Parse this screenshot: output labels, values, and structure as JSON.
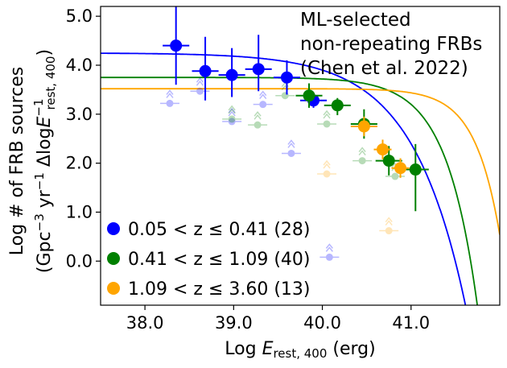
{
  "chart_data": {
    "type": "scatter",
    "xlabel": "Log E_rest,400 (erg)",
    "ylabel_line1": "Log # of FRB sources",
    "ylabel_line2": "(Gpc⁻³ yr⁻¹ ΔlogE⁻¹rest,400)",
    "xlim": [
      37.5,
      42.0
    ],
    "ylim": [
      -0.9,
      5.2
    ],
    "xticks": [
      38.0,
      39.0,
      40.0,
      41.0
    ],
    "xtick_labels": [
      "38.0",
      "39.0",
      "40.0",
      "41.0"
    ],
    "yticks": [
      0.0,
      1.0,
      2.0,
      3.0,
      4.0,
      5.0
    ],
    "ytick_labels": [
      "0.0",
      "1.0",
      "2.0",
      "3.0",
      "4.0",
      "5.0"
    ],
    "annotation": [
      "ML-selected",
      "non-repeating FRBs",
      "(Chen et al. 2022)"
    ],
    "legend_position": "bottom-left",
    "series": [
      {
        "name": "0.05 < z ≤ 0.41 (28)",
        "color": "#0000ff",
        "points": [
          {
            "x": 38.35,
            "y": 4.4,
            "xerr": 0.15,
            "yerr_lo": 0.8,
            "yerr_hi": 0.8
          },
          {
            "x": 38.68,
            "y": 3.88,
            "xerr": 0.15,
            "yerr_lo": 0.6,
            "yerr_hi": 0.7
          },
          {
            "x": 38.98,
            "y": 3.8,
            "xerr": 0.15,
            "yerr_lo": 0.45,
            "yerr_hi": 0.55
          },
          {
            "x": 39.28,
            "y": 3.92,
            "xerr": 0.15,
            "yerr_lo": 0.45,
            "yerr_hi": 0.7
          },
          {
            "x": 39.6,
            "y": 3.75,
            "xerr": 0.15,
            "yerr_lo": 0.35,
            "yerr_hi": 0.35
          },
          {
            "x": 39.9,
            "y": 3.28,
            "xerr": 0.15,
            "yerr_lo": 0.15,
            "yerr_hi": 0.15
          }
        ],
        "faint_limits": [
          {
            "x": 38.28,
            "y": 3.22
          },
          {
            "x": 38.62,
            "y": 3.47
          },
          {
            "x": 38.98,
            "y": 2.85
          },
          {
            "x": 39.33,
            "y": 3.2
          },
          {
            "x": 39.65,
            "y": 2.2
          },
          {
            "x": 40.08,
            "y": 0.08
          }
        ],
        "fit": {
          "a": 4.25,
          "e0": 40.0,
          "b": 0.35,
          "c": 0.6
        }
      },
      {
        "name": "0.41 < z ≤ 1.09 (40)",
        "color": "#008000",
        "points": [
          {
            "x": 39.85,
            "y": 3.38,
            "xerr": 0.15,
            "yerr_lo": 0.25,
            "yerr_hi": 0.25
          },
          {
            "x": 40.17,
            "y": 3.18,
            "xerr": 0.15,
            "yerr_lo": 0.2,
            "yerr_hi": 0.15
          },
          {
            "x": 40.47,
            "y": 2.8,
            "xerr": 0.15,
            "yerr_lo": 0.3,
            "yerr_hi": 0.3
          },
          {
            "x": 40.75,
            "y": 2.05,
            "xerr": 0.15,
            "yerr_lo": 0.3,
            "yerr_hi": 0.3
          },
          {
            "x": 41.05,
            "y": 1.87,
            "xerr": 0.15,
            "yerr_lo": 0.85,
            "yerr_hi": 0.52
          }
        ],
        "faint_limits": [
          {
            "x": 38.98,
            "y": 2.9
          },
          {
            "x": 39.27,
            "y": 2.78
          },
          {
            "x": 39.58,
            "y": 3.38
          },
          {
            "x": 40.05,
            "y": 2.8
          },
          {
            "x": 40.45,
            "y": 2.05
          },
          {
            "x": 40.82,
            "y": 1.73
          }
        ],
        "fit": {
          "a": 3.75,
          "e0": 41.0,
          "b": 0.55,
          "c": 0.35
        }
      },
      {
        "name": "1.09 < z ≤ 3.60 (13)",
        "color": "#ffa500",
        "points": [
          {
            "x": 40.47,
            "y": 2.75,
            "xerr": 0.15,
            "yerr_lo": 0.2,
            "yerr_hi": 0.2
          },
          {
            "x": 40.68,
            "y": 2.28,
            "xerr": 0.1,
            "yerr_lo": 0.2,
            "yerr_hi": 0.2
          },
          {
            "x": 40.88,
            "y": 1.9,
            "xerr": 0.1,
            "yerr_lo": 0.2,
            "yerr_hi": 0.2
          }
        ],
        "faint_limits": [
          {
            "x": 40.05,
            "y": 1.78
          },
          {
            "x": 40.75,
            "y": 0.62
          }
        ],
        "fit": {
          "a": 3.52,
          "e0": 41.5,
          "b": 0.5,
          "c": 0.28
        }
      }
    ]
  }
}
